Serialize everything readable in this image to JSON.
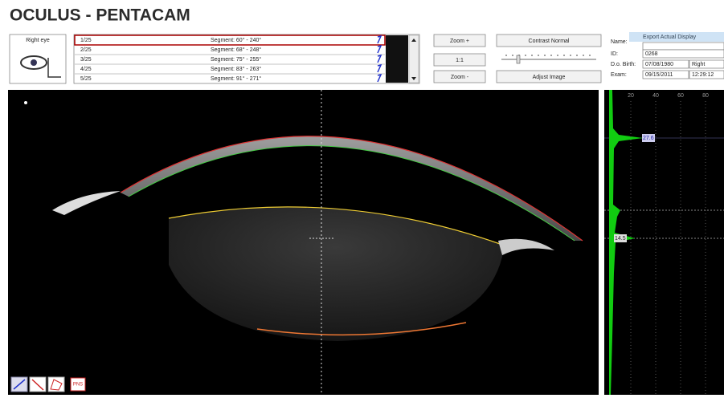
{
  "header": {
    "title": "OCULUS - PENTACAM"
  },
  "toolbar": {
    "eye": "Right eye",
    "images": [
      {
        "index": "1/25",
        "segment": "Segment: 60° - 240°"
      },
      {
        "index": "2/25",
        "segment": "Segment: 68° - 248°"
      },
      {
        "index": "3/25",
        "segment": "Segment: 75° - 255°"
      },
      {
        "index": "4/25",
        "segment": "Segment: 83° - 263°"
      },
      {
        "index": "5/25",
        "segment": "Segment: 91° - 271°"
      }
    ],
    "zoom_in": "Zoom +",
    "reset": "1:1",
    "zoom_out": "Zoom -",
    "contrast": "Contrast Normal",
    "adjust": "Adjust Image"
  },
  "patient": {
    "name_label": "Name:",
    "export": "Export Actual Display",
    "id_label": "ID:",
    "id": "0268",
    "birth_label": "D.o. Birth:",
    "birth": "07/08/1980",
    "eye": "Right",
    "exam_label": "Exam:",
    "exam_date": "09/15/2011",
    "exam_time": "12:29:12"
  },
  "density": {
    "ticks": [
      "20",
      "40",
      "60",
      "80"
    ],
    "peaks": [
      "27.6",
      "14.5"
    ]
  },
  "tools": {
    "pns": "PNS"
  }
}
